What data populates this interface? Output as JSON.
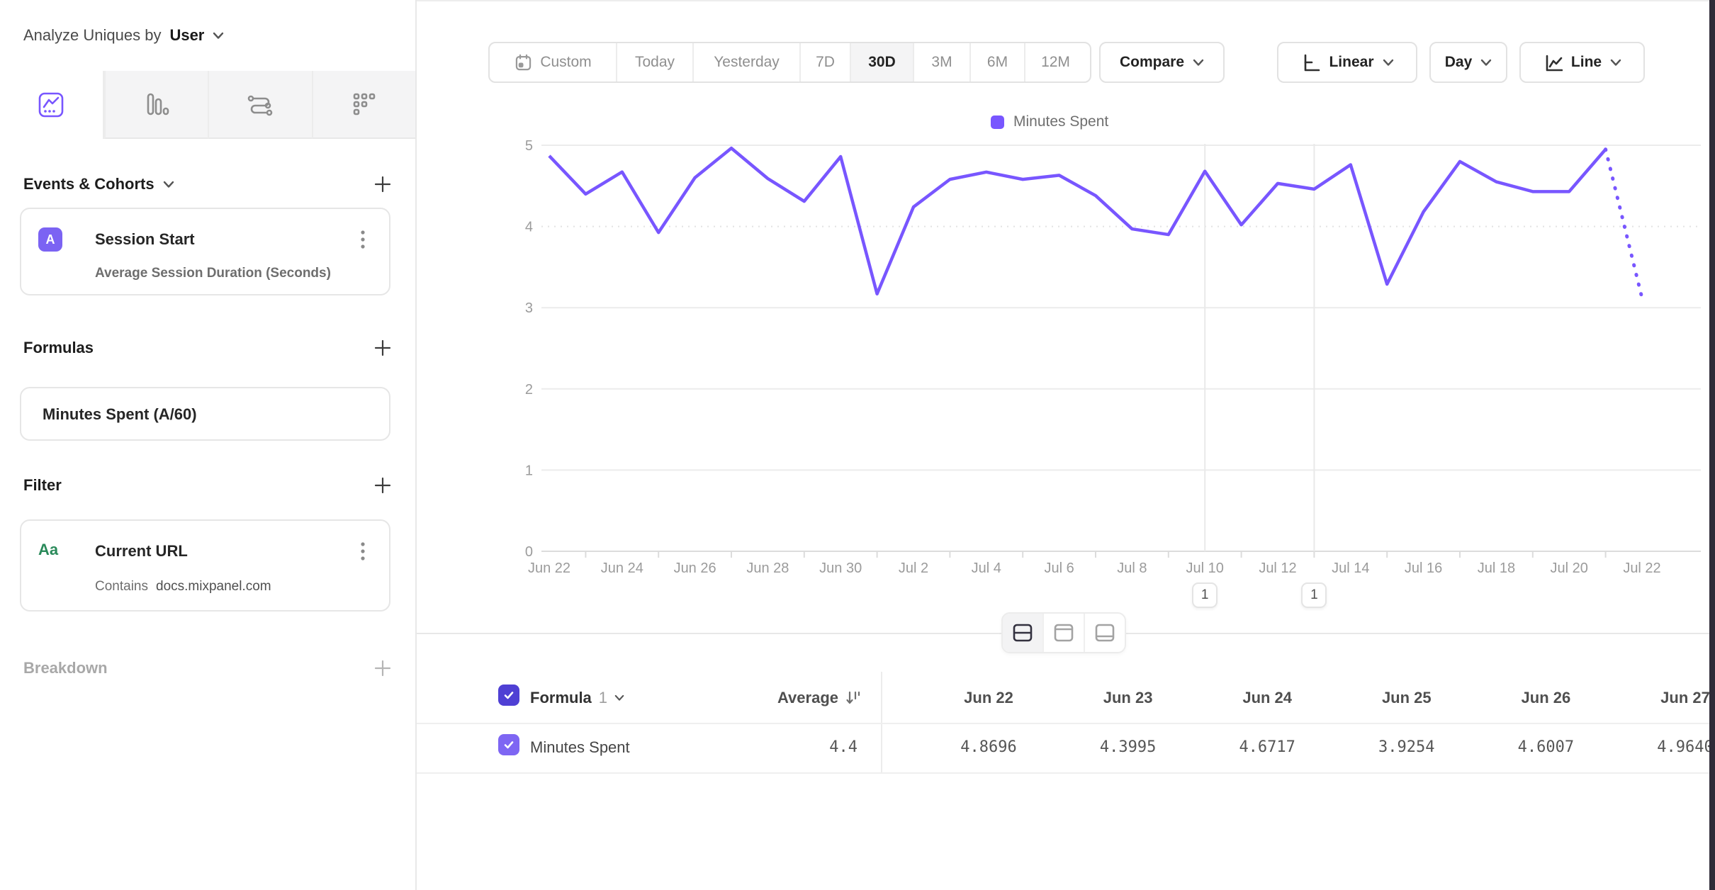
{
  "sidebar": {
    "analyze_label": "Analyze Uniques by",
    "analyze_value": "User",
    "tabs": [
      {
        "icon": "insights-line-icon",
        "active": true
      },
      {
        "icon": "bar-chart-icon",
        "active": false
      },
      {
        "icon": "flows-icon",
        "active": false
      },
      {
        "icon": "retention-grid-icon",
        "active": false
      }
    ],
    "events_section": {
      "title": "Events & Cohorts",
      "card": {
        "badge": "A",
        "title": "Session Start",
        "subtitle": "Average Session Duration (Seconds)"
      }
    },
    "formulas_section": {
      "title": "Formulas",
      "card": {
        "title": "Minutes Spent (A/60)"
      }
    },
    "filter_section": {
      "title": "Filter",
      "card": {
        "badge": "Aa",
        "title": "Current URL",
        "operator": "Contains",
        "value": "docs.mixpanel.com"
      }
    },
    "breakdown_section": {
      "title": "Breakdown"
    }
  },
  "toolbar": {
    "date_ranges": [
      "Custom",
      "Today",
      "Yesterday",
      "7D",
      "30D",
      "3M",
      "6M",
      "12M"
    ],
    "active_range": "30D",
    "compare_label": "Compare",
    "scale_label": "Linear",
    "interval_label": "Day",
    "chart_type_label": "Line"
  },
  "legend": {
    "label": "Minutes Spent",
    "color": "#7856ff"
  },
  "chart_data": {
    "type": "line",
    "title": "",
    "x": [
      "Jun 22",
      "Jun 23",
      "Jun 24",
      "Jun 25",
      "Jun 26",
      "Jun 27",
      "Jun 28",
      "Jun 29",
      "Jun 30",
      "Jul 1",
      "Jul 2",
      "Jul 3",
      "Jul 4",
      "Jul 5",
      "Jul 6",
      "Jul 7",
      "Jul 8",
      "Jul 9",
      "Jul 10",
      "Jul 11",
      "Jul 12",
      "Jul 13",
      "Jul 14",
      "Jul 15",
      "Jul 16",
      "Jul 17",
      "Jul 18",
      "Jul 19",
      "Jul 20",
      "Jul 21",
      "Jul 22"
    ],
    "x_tick_labels": [
      "Jun 22",
      "Jun 24",
      "Jun 26",
      "Jun 28",
      "Jun 30",
      "Jul 2",
      "Jul 4",
      "Jul 6",
      "Jul 8",
      "Jul 10",
      "Jul 12",
      "Jul 14",
      "Jul 16",
      "Jul 18",
      "Jul 20",
      "Jul 22"
    ],
    "series": [
      {
        "name": "Minutes Spent",
        "color": "#7856ff",
        "values": [
          4.8696,
          4.3995,
          4.6717,
          3.9254,
          4.6007,
          4.964,
          4.59,
          4.31,
          4.86,
          3.17,
          4.24,
          4.58,
          4.67,
          4.58,
          4.63,
          4.38,
          3.97,
          3.9,
          4.68,
          4.02,
          4.53,
          4.46,
          4.76,
          3.29,
          4.18,
          4.8,
          4.55,
          4.43,
          4.43,
          4.95,
          3.12
        ],
        "last_segment_style": "dotted"
      }
    ],
    "ylim": [
      0,
      5
    ],
    "y_ticks": [
      0,
      1,
      2,
      3,
      4,
      5
    ],
    "grid": "horizontal",
    "legend_position": "top-center"
  },
  "annotations": [
    {
      "label": "1",
      "date": "Jul 10",
      "day_index": 18
    },
    {
      "label": "1",
      "date": "Jul 13",
      "day_index": 21
    }
  ],
  "view_toggle": {
    "options": [
      "split-view",
      "chart-view",
      "table-view"
    ],
    "active": "split-view"
  },
  "table": {
    "group_label": "Formula",
    "group_index": "1",
    "average_label": "Average",
    "columns": [
      "Jun 22",
      "Jun 23",
      "Jun 24",
      "Jun 25",
      "Jun 26",
      "Jun 27"
    ],
    "rows": [
      {
        "name": "Minutes Spent",
        "average": "4.4",
        "values": [
          "4.8696",
          "4.3995",
          "4.6717",
          "3.9254",
          "4.6007",
          "4.9640"
        ]
      }
    ]
  },
  "colors": {
    "accent_purple": "#7856ff",
    "event_badge_purple": "#7b63f3",
    "filter_badge_green": "#2a8a5a",
    "header_checkbox": "#4f40d4",
    "row_checkbox": "#7e66f3",
    "dark_right_edge": "#2f2b38"
  }
}
